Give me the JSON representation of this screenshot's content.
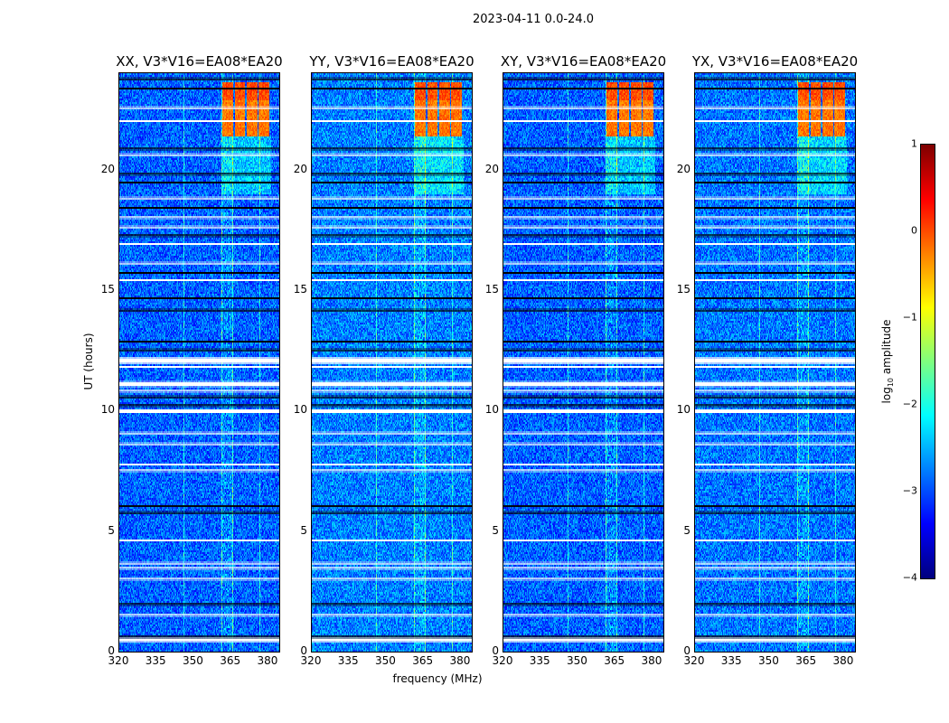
{
  "chart_data": {
    "type": "heatmap",
    "title": "2023-04-11 0.0-24.0",
    "xlabel": "frequency (MHz)",
    "ylabel": "UT (hours)",
    "xlim": [
      320,
      384.4
    ],
    "ylim": [
      0,
      24
    ],
    "xticks": [
      "320",
      "335",
      "350",
      "365",
      "380"
    ],
    "xtick_values": [
      320,
      335,
      350,
      365,
      380
    ],
    "yticks": [
      "0",
      "5",
      "10",
      "15",
      "20"
    ],
    "ytick_values": [
      0,
      5,
      10,
      15,
      20
    ],
    "panels": [
      {
        "title": "XX, V3*V16=EA08*EA20",
        "seed": 11,
        "level_offset": 0
      },
      {
        "title": "YY, V3*V16=EA08*EA20",
        "seed": 23,
        "level_offset": 0.15
      },
      {
        "title": "XY, V3*V16=EA08*EA20",
        "seed": 37,
        "level_offset": 0
      },
      {
        "title": "YX, V3*V16=EA08*EA20",
        "seed": 51,
        "level_offset": 0.1
      }
    ],
    "background_log_amplitude": -2.9,
    "bright_channels_mhz": [
      346,
      365.5,
      376.5,
      361
    ],
    "bright_block": {
      "freq_mhz": [
        361.5,
        381
      ],
      "ut_hours": [
        21.4,
        23.6
      ],
      "log_amplitude": -0.2
    },
    "flagged_white_ut_hours": [
      [
        11.95,
        12.2
      ],
      [
        11.0,
        11.2
      ],
      [
        9.9,
        10.05
      ],
      [
        0.4,
        0.58
      ],
      [
        11.8,
        11.85
      ],
      [
        10.8,
        10.85
      ],
      [
        9.05,
        9.1
      ],
      [
        8.6,
        8.65
      ],
      [
        7.75,
        7.8
      ],
      [
        7.5,
        7.55
      ],
      [
        4.6,
        4.65
      ],
      [
        3.65,
        3.7
      ],
      [
        3.45,
        3.5
      ],
      [
        3.0,
        3.05
      ],
      [
        1.5,
        1.55
      ],
      [
        22.55,
        22.6
      ],
      [
        22.0,
        22.05
      ],
      [
        20.6,
        20.65
      ],
      [
        18.8,
        18.85
      ],
      [
        18.0,
        18.05
      ],
      [
        17.6,
        17.65
      ],
      [
        16.9,
        16.95
      ],
      [
        16.1,
        16.15
      ],
      [
        15.4,
        15.45
      ]
    ],
    "flagged_black_ut_hours": [
      20.9,
      19.85,
      19.5,
      18.45,
      17.3,
      15.75,
      14.7,
      14.2,
      12.9,
      12.55,
      10.6,
      10.25,
      6.07,
      5.8,
      2.0,
      0.65,
      23.4,
      23.8
    ],
    "colorbar": {
      "label_main": "log",
      "label_sub": "10",
      "label_rest": " amplitude",
      "range": [
        -4,
        1
      ],
      "ticks": [
        "1",
        "0",
        "−1",
        "−2",
        "−3",
        "−4"
      ],
      "tick_values": [
        1,
        0,
        -1,
        -2,
        -3,
        -4
      ],
      "colormap": "jet"
    }
  }
}
